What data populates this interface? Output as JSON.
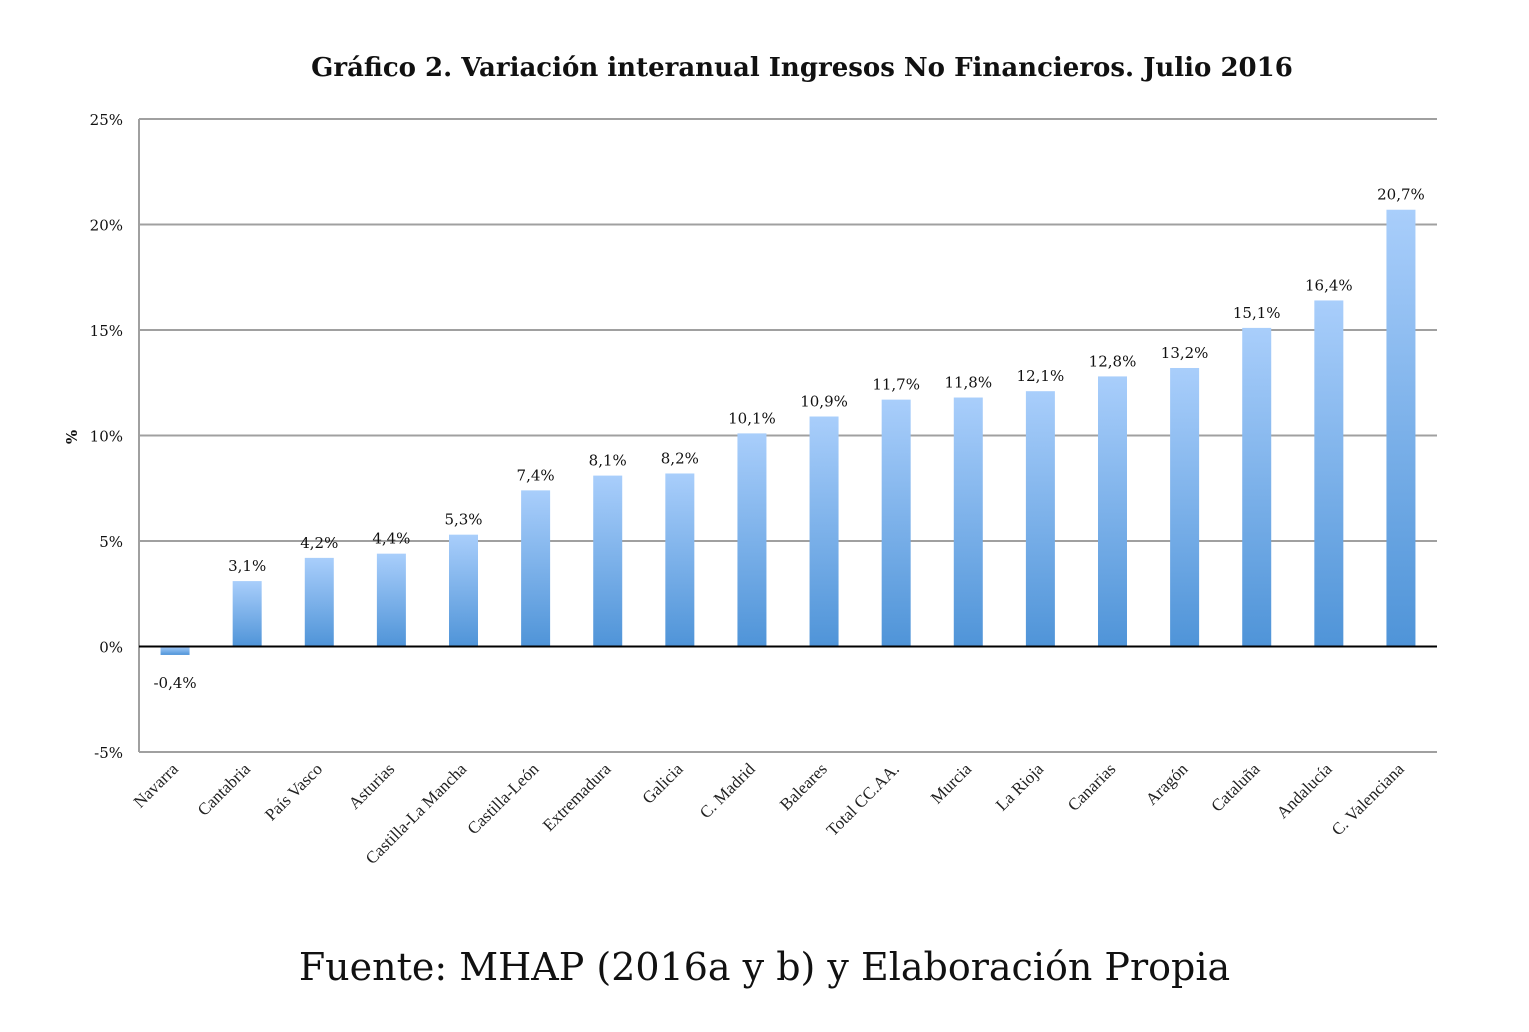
{
  "chart_data": {
    "type": "bar",
    "title": "Gráfico 2. Variación interanual Ingresos No Financieros. Julio 2016",
    "xlabel": "",
    "ylabel": "%",
    "ylim": [
      -5,
      25
    ],
    "yticks": [
      -5,
      0,
      5,
      10,
      15,
      20,
      25
    ],
    "ytick_labels": [
      "-5%",
      "0%",
      "5%",
      "10%",
      "15%",
      "20%",
      "25%"
    ],
    "grid": true,
    "categories": [
      "Navarra",
      "Cantabria",
      "País Vasco",
      "Asturias",
      "Castilla-La Mancha",
      "Castilla-León",
      "Extremadura",
      "Galicia",
      "C. Madrid",
      "Baleares",
      "Total CC.AA.",
      "Murcia",
      "La Rioja",
      "Canarias",
      "Aragón",
      "Cataluña",
      "Andalucía",
      "C. Valenciana"
    ],
    "values": [
      -0.4,
      3.1,
      4.2,
      4.4,
      5.3,
      7.4,
      8.1,
      8.2,
      10.1,
      10.9,
      11.7,
      11.8,
      12.1,
      12.8,
      13.2,
      15.1,
      16.4,
      20.7
    ],
    "data_labels": [
      "-0,4%",
      "3,1%",
      "4,2%",
      "4,4%",
      "5,3%",
      "7,4%",
      "8,1%",
      "8,2%",
      "10,1%",
      "10,9%",
      "11,7%",
      "11,8%",
      "12,1%",
      "12,8%",
      "13,2%",
      "15,1%",
      "16,4%",
      "20,7%"
    ],
    "colors": {
      "bar_top": "#a9cefb",
      "bar_bottom": "#4f94d8",
      "grid": "#a0a0a0",
      "zero_line": "#000000"
    }
  },
  "source": "Fuente: MHAP (2016a y b) y Elaboración Propia"
}
